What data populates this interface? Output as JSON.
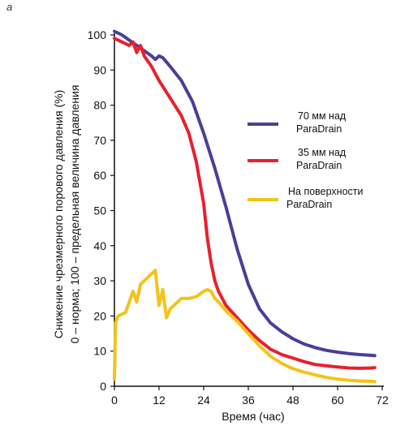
{
  "panel_label": "a",
  "chart_data": {
    "type": "line",
    "xlabel": "Время (час)",
    "ylabel_line1": "Снижение чрезмерного порового давления (%)",
    "ylabel_line2": "0 – норма; 100 – предельная величина давления",
    "xlim": [
      0,
      72
    ],
    "ylim": [
      0,
      100
    ],
    "x_ticks": [
      "0",
      "12",
      "24",
      "36",
      "48",
      "60",
      "72"
    ],
    "y_ticks": [
      "0",
      "10",
      "20",
      "30",
      "40",
      "50",
      "60",
      "70",
      "80",
      "90",
      "100"
    ],
    "grid": false,
    "legend_position": "right",
    "series": [
      {
        "name_line1": "70 мм над",
        "name_line2": "ParaDrain",
        "color": "#4a3f98",
        "points": [
          [
            0,
            101
          ],
          [
            2,
            100
          ],
          [
            4,
            98.5
          ],
          [
            6,
            97
          ],
          [
            8,
            95.5
          ],
          [
            10,
            94
          ],
          [
            11,
            93
          ],
          [
            12,
            94
          ],
          [
            13,
            93.5
          ],
          [
            15,
            91
          ],
          [
            18,
            87
          ],
          [
            21,
            81
          ],
          [
            24,
            72
          ],
          [
            27,
            62
          ],
          [
            30,
            51
          ],
          [
            33,
            39
          ],
          [
            36,
            29
          ],
          [
            39,
            22
          ],
          [
            42,
            18
          ],
          [
            45,
            15.5
          ],
          [
            48,
            13.5
          ],
          [
            51,
            12
          ],
          [
            54,
            11
          ],
          [
            57,
            10.2
          ],
          [
            60,
            9.7
          ],
          [
            63,
            9.3
          ],
          [
            66,
            9
          ],
          [
            69,
            8.8
          ],
          [
            70,
            8.7
          ]
        ]
      },
      {
        "name_line1": "35 мм над",
        "name_line2": "ParaDrain",
        "color": "#e8202f",
        "points": [
          [
            0,
            99
          ],
          [
            2,
            98
          ],
          [
            3,
            97.5
          ],
          [
            4,
            97
          ],
          [
            5,
            98
          ],
          [
            6,
            95
          ],
          [
            7,
            97
          ],
          [
            8,
            94
          ],
          [
            10,
            91
          ],
          [
            12,
            87
          ],
          [
            15,
            82
          ],
          [
            18,
            77
          ],
          [
            20,
            72
          ],
          [
            22,
            64
          ],
          [
            24,
            52
          ],
          [
            25,
            42
          ],
          [
            26,
            35
          ],
          [
            27,
            30
          ],
          [
            28,
            27
          ],
          [
            30,
            23
          ],
          [
            33,
            19.5
          ],
          [
            36,
            16
          ],
          [
            39,
            13
          ],
          [
            42,
            10.5
          ],
          [
            45,
            9
          ],
          [
            48,
            8
          ],
          [
            51,
            7
          ],
          [
            54,
            6.2
          ],
          [
            57,
            5.8
          ],
          [
            60,
            5.5
          ],
          [
            63,
            5.2
          ],
          [
            66,
            5.1
          ],
          [
            69,
            5.2
          ],
          [
            70,
            5.3
          ]
        ]
      },
      {
        "name_line1": "На поверхности",
        "name_line2": "ParaDrain",
        "color": "#f2c31b",
        "points": [
          [
            0,
            2
          ],
          [
            0.3,
            18
          ],
          [
            1,
            20
          ],
          [
            2,
            20.5
          ],
          [
            3,
            21
          ],
          [
            4,
            24
          ],
          [
            5,
            27
          ],
          [
            6,
            24
          ],
          [
            7,
            29
          ],
          [
            8,
            30
          ],
          [
            10,
            32
          ],
          [
            11,
            33
          ],
          [
            12,
            23
          ],
          [
            13,
            27.5
          ],
          [
            14,
            19.5
          ],
          [
            15,
            22
          ],
          [
            16,
            23
          ],
          [
            18,
            25
          ],
          [
            20,
            25
          ],
          [
            22,
            25.5
          ],
          [
            24,
            27
          ],
          [
            25,
            27.5
          ],
          [
            26,
            27
          ],
          [
            27,
            25
          ],
          [
            28,
            24
          ],
          [
            30,
            21.5
          ],
          [
            33,
            18.5
          ],
          [
            36,
            15
          ],
          [
            39,
            11.5
          ],
          [
            42,
            8.5
          ],
          [
            45,
            6.5
          ],
          [
            48,
            5
          ],
          [
            51,
            4
          ],
          [
            54,
            3.2
          ],
          [
            57,
            2.5
          ],
          [
            60,
            2
          ],
          [
            63,
            1.7
          ],
          [
            66,
            1.5
          ],
          [
            69,
            1.4
          ],
          [
            70,
            1.3
          ]
        ]
      }
    ]
  }
}
